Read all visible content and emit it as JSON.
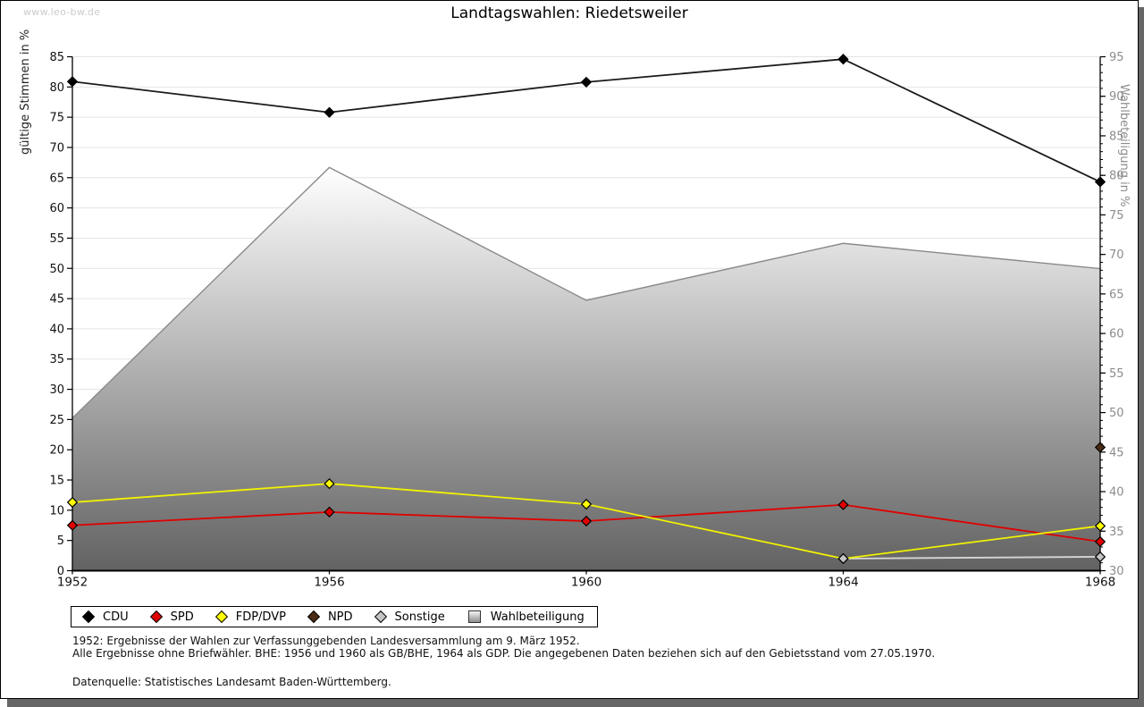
{
  "watermark": "www.leo-bw.de",
  "chart_data": {
    "type": "line",
    "title": "Landtagswahlen: Riedetsweiler",
    "x": [
      "1952",
      "1956",
      "1960",
      "1964",
      "1968"
    ],
    "left_axis": {
      "label": "gültige Stimmen in %",
      "min": 0,
      "max": 85,
      "step": 5
    },
    "right_axis": {
      "label": "Wahlbeteiligung in %",
      "min": 30,
      "max": 95,
      "step": 5,
      "minor_step": 1
    },
    "grid": "horizontal",
    "legend_position": "bottom",
    "series": [
      {
        "name": "Wahlbeteiligung",
        "kind": "area",
        "axis": "right",
        "color_top": "#ffffff",
        "color_bottom": "#626262",
        "edge_color": "#8a8a8a",
        "values": [
          49.3,
          81.0,
          64.2,
          71.4,
          68.2
        ]
      },
      {
        "name": "Sonstige",
        "kind": "line",
        "axis": "left",
        "color": "#c4c4c4",
        "line_color": "#d6d6d6",
        "values": [
          null,
          null,
          null,
          2.0,
          2.3
        ]
      },
      {
        "name": "SPD",
        "kind": "line",
        "axis": "left",
        "color": "#e00000",
        "line_color": "#e00000",
        "values": [
          7.5,
          9.7,
          8.2,
          10.9,
          4.8
        ]
      },
      {
        "name": "FDP/DVP",
        "kind": "line",
        "axis": "left",
        "color": "#ffff00",
        "line_color": "#f2f200",
        "values": [
          11.3,
          14.4,
          11.0,
          2.0,
          7.4
        ]
      },
      {
        "name": "NPD",
        "kind": "line",
        "axis": "left",
        "color": "#4a2b15",
        "line_color": "#4a2b15",
        "values": [
          null,
          null,
          null,
          null,
          20.4
        ]
      },
      {
        "name": "CDU",
        "kind": "line",
        "axis": "left",
        "color": "#000000",
        "line_color": "#1a1a1a",
        "values": [
          80.9,
          75.8,
          80.8,
          84.6,
          64.3
        ]
      }
    ]
  },
  "legend": {
    "items": [
      {
        "label": "CDU",
        "swatch": "diamond",
        "color": "#000000"
      },
      {
        "label": "SPD",
        "swatch": "diamond",
        "color": "#e00000"
      },
      {
        "label": "FDP/DVP",
        "swatch": "diamond",
        "color": "#ffff00"
      },
      {
        "label": "NPD",
        "swatch": "diamond",
        "color": "#4a2b15"
      },
      {
        "label": "Sonstige",
        "swatch": "diamond",
        "color": "#c4c4c4"
      },
      {
        "label": "Wahlbeteiligung",
        "swatch": "square",
        "color": "#9a9a9a"
      }
    ]
  },
  "notes": {
    "line1": "1952: Ergebnisse der Wahlen zur Verfassunggebenden Landesversammlung am 9. März 1952.",
    "line2": "Alle Ergebnisse ohne Briefwähler. BHE: 1956 und 1960 als GB/BHE, 1964 als GDP. Die angegebenen Daten beziehen sich auf den Gebietsstand vom 27.05.1970.",
    "source": "Datenquelle: Statistisches Landesamt Baden-Württemberg."
  },
  "colors": {
    "grid": "#e4e4e4",
    "axis": "#000000",
    "right_axis_text": "#8c8c8c",
    "left_axis_text": "#111111",
    "watermark": "#cccccc",
    "page_shadow": "#666666"
  }
}
